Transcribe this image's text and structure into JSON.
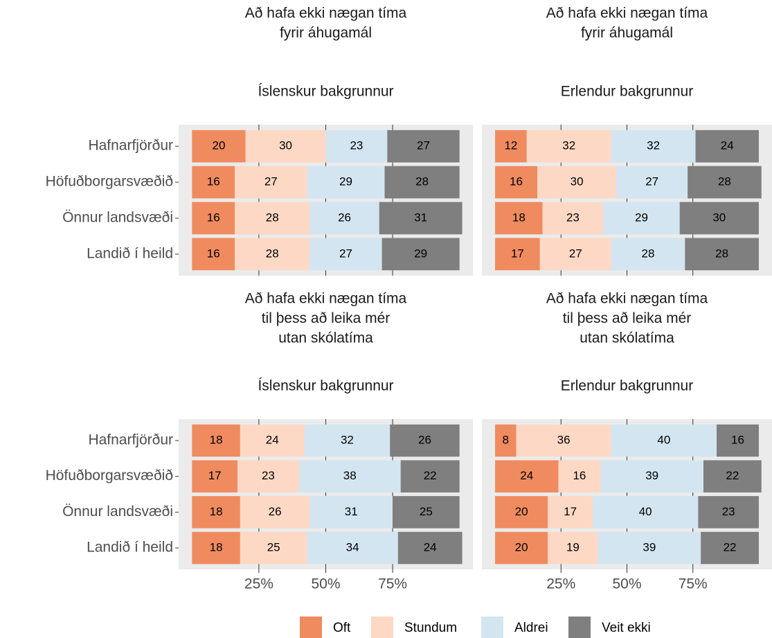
{
  "chart_data": [
    {
      "type": "bar",
      "stacked": true,
      "title": [
        "Að hafa ekki nægan tíma",
        "fyrir áhugamál"
      ],
      "subtitle": "Íslenskur bakgrunnur",
      "categories": [
        "Hafnarfjörður",
        "Höfuðborgarsvæðið",
        "Önnur landsvæði",
        "Landið í heild"
      ],
      "series": [
        {
          "name": "Oft",
          "color": "#f08b60",
          "values": [
            20,
            16,
            16,
            16
          ]
        },
        {
          "name": "Stundum",
          "color": "#fdd9c5",
          "values": [
            30,
            27,
            28,
            28
          ]
        },
        {
          "name": "Aldrei",
          "color": "#d3e5f0",
          "values": [
            23,
            29,
            26,
            27
          ]
        },
        {
          "name": "Veit ekki",
          "color": "#7f7f7f",
          "values": [
            27,
            28,
            31,
            29
          ]
        }
      ],
      "xlim": [
        -5,
        105
      ],
      "xticks": [
        25,
        50,
        75
      ]
    },
    {
      "type": "bar",
      "stacked": true,
      "title": [
        "Að hafa ekki nægan tíma",
        "fyrir áhugamál"
      ],
      "subtitle": "Erlendur bakgrunnur",
      "series": [
        {
          "values": [
            12,
            16,
            18,
            17
          ]
        },
        {
          "values": [
            32,
            30,
            23,
            27
          ]
        },
        {
          "values": [
            32,
            27,
            29,
            28
          ]
        },
        {
          "values": [
            24,
            28,
            30,
            28
          ]
        }
      ],
      "xlim": [
        -5,
        105
      ],
      "xticks": [
        25,
        50,
        75
      ]
    },
    {
      "type": "bar",
      "stacked": true,
      "title": [
        "Að hafa ekki nægan tíma",
        "til þess að leika mér",
        "utan skólatíma"
      ],
      "subtitle": "Íslenskur bakgrunnur",
      "categories": [
        "Hafnarfjörður",
        "Höfuðborgarsvæðið",
        "Önnur landsvæði",
        "Landið í heild"
      ],
      "series": [
        {
          "values": [
            18,
            17,
            18,
            18
          ]
        },
        {
          "values": [
            24,
            23,
            26,
            25
          ]
        },
        {
          "values": [
            32,
            38,
            31,
            34
          ]
        },
        {
          "values": [
            26,
            22,
            25,
            24
          ]
        }
      ],
      "xlim": [
        -5,
        105
      ],
      "xticks": [
        {
          "value": 25,
          "label": "25%"
        },
        {
          "value": 50,
          "label": "50%"
        },
        {
          "value": 75,
          "label": "75%"
        }
      ]
    },
    {
      "type": "bar",
      "stacked": true,
      "title": [
        "Að hafa ekki nægan tíma",
        "til þess að leika mér",
        "utan skólatíma"
      ],
      "subtitle": "Erlendur bakgrunnur",
      "series": [
        {
          "values": [
            8,
            24,
            20,
            20
          ]
        },
        {
          "values": [
            36,
            16,
            17,
            19
          ]
        },
        {
          "values": [
            40,
            39,
            40,
            39
          ]
        },
        {
          "values": [
            16,
            22,
            23,
            22
          ]
        }
      ],
      "xlim": [
        -5,
        105
      ],
      "xticks": [
        {
          "value": 25,
          "label": "25%"
        },
        {
          "value": 50,
          "label": "50%"
        },
        {
          "value": 75,
          "label": "75%"
        }
      ]
    }
  ]
}
